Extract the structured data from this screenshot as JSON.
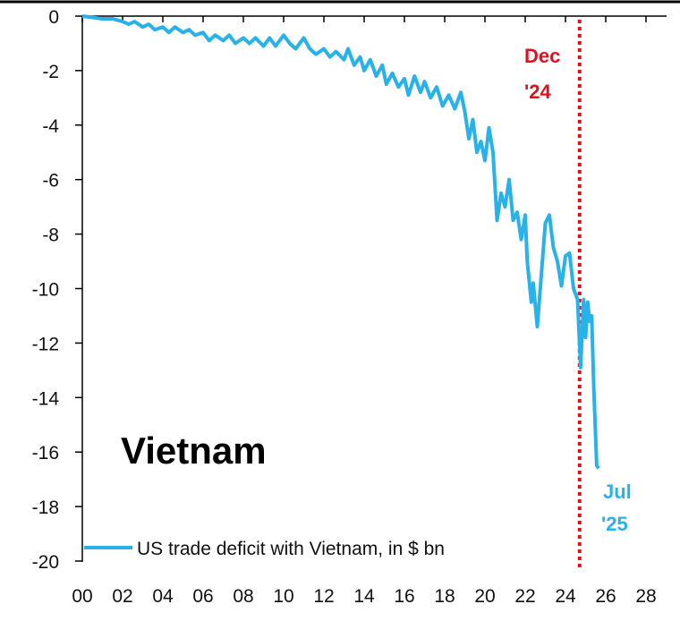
{
  "chart_data": {
    "type": "line",
    "title": "Vietnam",
    "xlabel": "",
    "ylabel": "",
    "xlim": [
      0,
      28
    ],
    "ylim": [
      -20,
      0
    ],
    "grid": false,
    "x_ticks": [
      "00",
      "02",
      "04",
      "06",
      "08",
      "10",
      "12",
      "14",
      "16",
      "18",
      "20",
      "22",
      "24",
      "26",
      "28"
    ],
    "y_ticks": [
      "0",
      "-2",
      "-4",
      "-6",
      "-8",
      "-10",
      "-12",
      "-14",
      "-16",
      "-18",
      "-20"
    ],
    "legend": {
      "position": "bottom-left",
      "entries": [
        "US trade deficit with Vietnam, in $ bn"
      ]
    },
    "annotations": {
      "dec24": {
        "line1": "Dec",
        "line2": "'24",
        "x": 24.7,
        "color": "#e0101e"
      },
      "jul25": {
        "line1": "Jul",
        "line2": "'25",
        "color": "#29b2ea"
      }
    },
    "series": [
      {
        "name": "US trade deficit with Vietnam, in $ bn",
        "color": "#29b2ea",
        "points": [
          [
            0,
            0
          ],
          [
            0.5,
            -0.05
          ],
          [
            1,
            -0.1
          ],
          [
            1.5,
            -0.1
          ],
          [
            2,
            -0.2
          ],
          [
            2.3,
            -0.3
          ],
          [
            2.6,
            -0.2
          ],
          [
            3,
            -0.4
          ],
          [
            3.3,
            -0.3
          ],
          [
            3.6,
            -0.5
          ],
          [
            4,
            -0.4
          ],
          [
            4.3,
            -0.6
          ],
          [
            4.6,
            -0.4
          ],
          [
            5,
            -0.6
          ],
          [
            5.3,
            -0.5
          ],
          [
            5.6,
            -0.7
          ],
          [
            6,
            -0.6
          ],
          [
            6.3,
            -0.9
          ],
          [
            6.6,
            -0.7
          ],
          [
            7,
            -0.9
          ],
          [
            7.3,
            -0.7
          ],
          [
            7.6,
            -1.0
          ],
          [
            8,
            -0.8
          ],
          [
            8.3,
            -1.0
          ],
          [
            8.6,
            -0.8
          ],
          [
            9,
            -1.1
          ],
          [
            9.3,
            -0.8
          ],
          [
            9.6,
            -1.1
          ],
          [
            10,
            -0.7
          ],
          [
            10.3,
            -1.0
          ],
          [
            10.6,
            -1.2
          ],
          [
            11,
            -0.8
          ],
          [
            11.3,
            -1.2
          ],
          [
            11.6,
            -1.4
          ],
          [
            12,
            -1.2
          ],
          [
            12.3,
            -1.5
          ],
          [
            12.6,
            -1.3
          ],
          [
            13,
            -1.6
          ],
          [
            13.2,
            -1.2
          ],
          [
            13.5,
            -1.8
          ],
          [
            13.8,
            -1.5
          ],
          [
            14,
            -2.0
          ],
          [
            14.3,
            -1.6
          ],
          [
            14.6,
            -2.2
          ],
          [
            14.9,
            -1.8
          ],
          [
            15.1,
            -2.5
          ],
          [
            15.4,
            -2.1
          ],
          [
            15.7,
            -2.6
          ],
          [
            16,
            -2.3
          ],
          [
            16.2,
            -2.9
          ],
          [
            16.5,
            -2.2
          ],
          [
            16.8,
            -2.8
          ],
          [
            17,
            -2.4
          ],
          [
            17.3,
            -3.0
          ],
          [
            17.6,
            -2.6
          ],
          [
            17.9,
            -3.3
          ],
          [
            18.2,
            -2.9
          ],
          [
            18.5,
            -3.4
          ],
          [
            18.8,
            -2.8
          ],
          [
            19,
            -3.5
          ],
          [
            19.2,
            -4.5
          ],
          [
            19.4,
            -3.8
          ],
          [
            19.6,
            -5.0
          ],
          [
            19.8,
            -4.6
          ],
          [
            20,
            -5.3
          ],
          [
            20.2,
            -4.1
          ],
          [
            20.4,
            -5.0
          ],
          [
            20.6,
            -7.5
          ],
          [
            20.8,
            -6.5
          ],
          [
            21,
            -7.0
          ],
          [
            21.2,
            -6.0
          ],
          [
            21.4,
            -7.5
          ],
          [
            21.6,
            -7.2
          ],
          [
            21.8,
            -8.2
          ],
          [
            22,
            -7.3
          ],
          [
            22.1,
            -9.0
          ],
          [
            22.3,
            -10.5
          ],
          [
            22.4,
            -9.8
          ],
          [
            22.6,
            -11.4
          ],
          [
            22.8,
            -9.5
          ],
          [
            23,
            -7.6
          ],
          [
            23.2,
            -7.3
          ],
          [
            23.4,
            -8.5
          ],
          [
            23.6,
            -9.0
          ],
          [
            23.8,
            -9.9
          ],
          [
            24,
            -8.8
          ],
          [
            24.2,
            -8.7
          ],
          [
            24.4,
            -10.0
          ],
          [
            24.6,
            -10.4
          ],
          [
            24.75,
            -12.9
          ],
          [
            24.9,
            -10.4
          ],
          [
            25,
            -11.8
          ],
          [
            25.1,
            -10.5
          ],
          [
            25.2,
            -11.2
          ],
          [
            25.3,
            -11.0
          ],
          [
            25.4,
            -13.5
          ],
          [
            25.55,
            -16.5
          ],
          [
            25.65,
            -16.6
          ]
        ]
      }
    ]
  }
}
